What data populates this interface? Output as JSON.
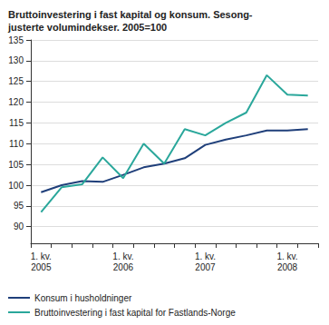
{
  "chart_data": {
    "type": "line",
    "title": "Bruttoinvestering i fast kapital og konsum. Sesong-\njusterte volumindekser. 2005=100",
    "categories": [
      "1. kv.\n2005",
      null,
      null,
      null,
      "1. kv.\n2006",
      null,
      null,
      null,
      "1. kv.\n2007",
      null,
      null,
      null,
      "1. kv.\n2008",
      null
    ],
    "series": [
      {
        "name": "Konsum i husholdninger",
        "color": "#1f3f7a",
        "values": [
          98.3,
          100,
          101,
          100.8,
          102.5,
          104.3,
          105.2,
          106.5,
          109.7,
          111,
          112,
          113.2,
          113.2,
          113.5
        ]
      },
      {
        "name": "Bruttoinvestering i fast kapital for Fastlands-Norge",
        "color": "#2aa79b",
        "values": [
          93.5,
          99.5,
          100.2,
          106.7,
          101.7,
          110,
          105.2,
          113.5,
          112,
          115,
          117.5,
          126.5,
          121.8,
          121.6
        ]
      }
    ],
    "ylim": [
      86,
      135
    ],
    "yticks": [
      90,
      95,
      100,
      105,
      110,
      115,
      120,
      125,
      130,
      135
    ],
    "grid": true,
    "legend": "bottom"
  }
}
